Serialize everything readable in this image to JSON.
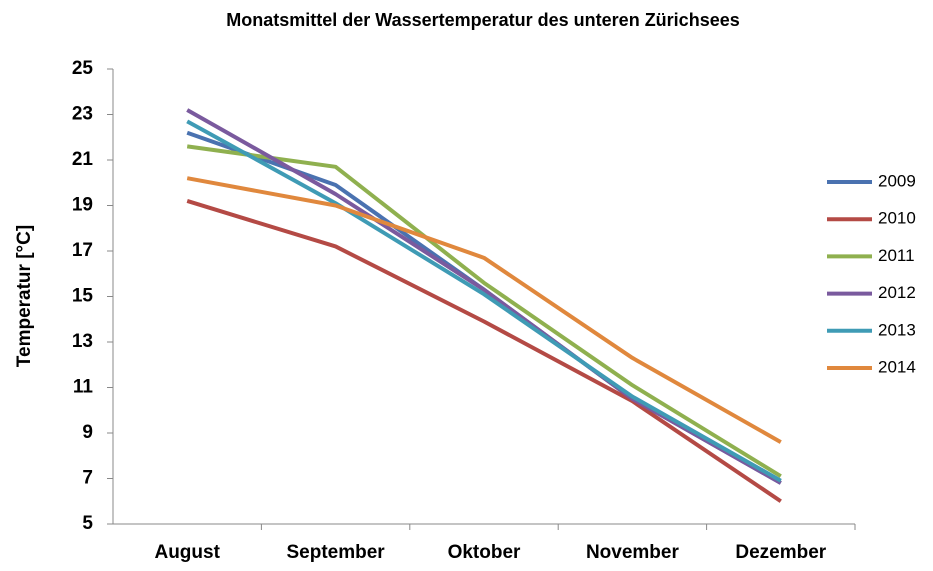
{
  "chart_data": {
    "type": "line",
    "title": "Monatsmittel der Wassertemperatur des unteren Zürichsees",
    "y_label": "Temperatur [°C]",
    "categories": [
      "August",
      "September",
      "Oktober",
      "November",
      "Dezember"
    ],
    "series": [
      {
        "name": "2009",
        "color": "#4a72b0",
        "values": [
          22.2,
          19.9,
          15.3,
          10.5,
          6.8
        ]
      },
      {
        "name": "2010",
        "color": "#b44a45",
        "values": [
          19.2,
          17.2,
          13.9,
          10.4,
          6.0
        ]
      },
      {
        "name": "2011",
        "color": "#8fb04f",
        "values": [
          21.6,
          20.7,
          15.6,
          11.1,
          7.1
        ]
      },
      {
        "name": "2012",
        "color": "#7a5a9e",
        "values": [
          23.2,
          19.5,
          15.3,
          10.5,
          6.8
        ]
      },
      {
        "name": "2013",
        "color": "#3f9bb5",
        "values": [
          22.7,
          19.1,
          15.1,
          10.6,
          6.9
        ]
      },
      {
        "name": "2014",
        "color": "#e0883d",
        "values": [
          20.2,
          19.0,
          16.7,
          12.3,
          8.6
        ]
      }
    ],
    "ylim": [
      5,
      25
    ],
    "yticks": [
      5,
      7,
      9,
      11,
      13,
      15,
      17,
      19,
      21,
      23,
      25
    ],
    "legend": "right"
  }
}
